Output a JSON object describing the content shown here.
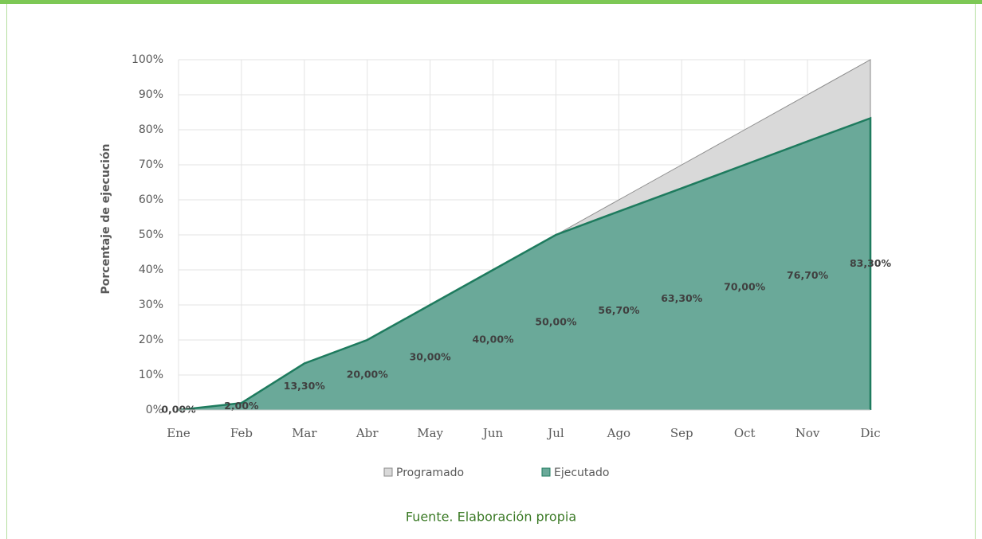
{
  "chart_data": {
    "type": "area",
    "y_axis_label": "Porcentaje de ejecución",
    "categories": [
      "Ene",
      "Feb",
      "Mar",
      "Abr",
      "May",
      "Jun",
      "Jul",
      "Ago",
      "Sep",
      "Oct",
      "Nov",
      "Dic"
    ],
    "series": [
      {
        "name": "Programado",
        "color": "#d9d9d9",
        "values": [
          0,
          2,
          13.3,
          20,
          30,
          40,
          50,
          60,
          70,
          80,
          90,
          100
        ]
      },
      {
        "name": "Ejecutado",
        "color": "#6aa999",
        "values": [
          0,
          2,
          13.3,
          20,
          30,
          40,
          50,
          56.7,
          63.3,
          70,
          76.7,
          83.3
        ],
        "value_labels": [
          "0,00%",
          "2,00%",
          "13,30%",
          "20,00%",
          "30,00%",
          "40,00%",
          "50,00%",
          "56,70%",
          "63,30%",
          "70,00%",
          "76,70%",
          "83,30%"
        ]
      }
    ],
    "ylim": [
      0,
      100
    ],
    "yticks": [
      {
        "value": 0,
        "label": "0%"
      },
      {
        "value": 10,
        "label": "10%"
      },
      {
        "value": 20,
        "label": "20%"
      },
      {
        "value": 30,
        "label": "30%"
      },
      {
        "value": 40,
        "label": "40%"
      },
      {
        "value": 50,
        "label": "50%"
      },
      {
        "value": 60,
        "label": "60%"
      },
      {
        "value": 70,
        "label": "70%"
      },
      {
        "value": 80,
        "label": "80%"
      },
      {
        "value": 90,
        "label": "90%"
      },
      {
        "value": 100,
        "label": "100%"
      }
    ],
    "grid": true,
    "legend": "bottom"
  },
  "caption": "Fuente. Elaboración propia"
}
